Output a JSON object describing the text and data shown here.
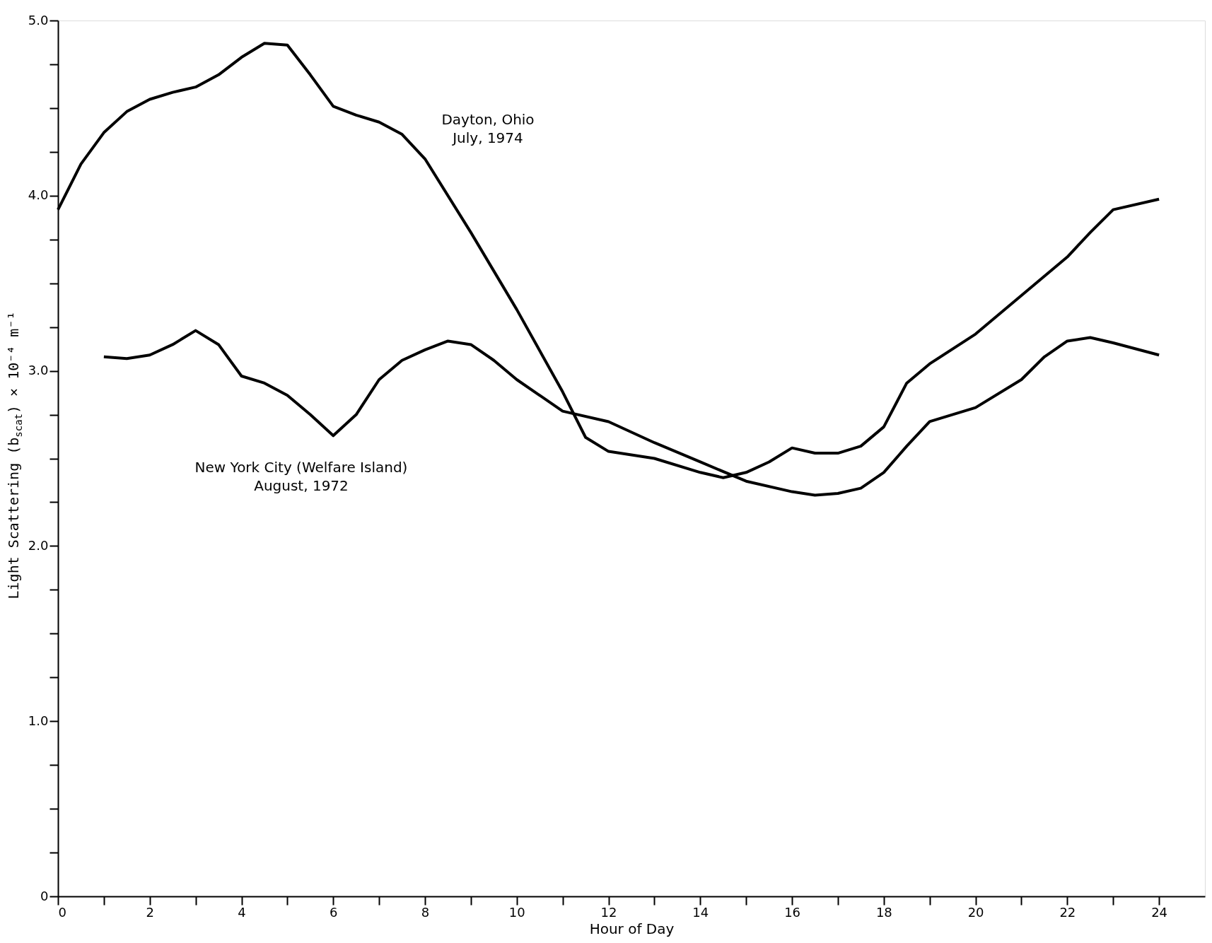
{
  "chart_data": {
    "type": "line",
    "xlabel": "Hour of Day",
    "ylabel": "Light Scattering (b$_{scat}$) × 10⁻⁴ m⁻¹",
    "xlim": [
      0,
      25
    ],
    "ylim": [
      0,
      5
    ],
    "xticks": [
      0,
      {
        "value": 1,
        "label": null
      },
      2,
      {
        "value": 3,
        "label": null
      },
      4,
      {
        "value": 5,
        "label": null
      },
      6,
      {
        "value": 7,
        "label": null
      },
      8,
      {
        "value": 9,
        "label": null
      },
      10,
      {
        "value": 11,
        "label": null
      },
      12,
      {
        "value": 13,
        "label": null
      },
      14,
      {
        "value": 15,
        "label": null
      },
      16,
      {
        "value": 17,
        "label": null
      },
      18,
      {
        "value": 19,
        "label": null
      },
      20,
      {
        "value": 21,
        "label": null
      },
      22,
      {
        "value": 23,
        "label": null
      },
      24
    ],
    "yticks": [
      0,
      {
        "value": 0.25,
        "label": null
      },
      {
        "value": 0.5,
        "label": null
      },
      {
        "value": 0.75,
        "label": null
      },
      {
        "value": 1,
        "label": "1.0"
      },
      {
        "value": 1.25,
        "label": null
      },
      {
        "value": 1.5,
        "label": null
      },
      {
        "value": 1.75,
        "label": null
      },
      {
        "value": 2,
        "label": "2.0"
      },
      {
        "value": 2.25,
        "label": null
      },
      {
        "value": 2.5,
        "label": null
      },
      {
        "value": 2.75,
        "label": null
      },
      {
        "value": 3,
        "label": "3.0"
      },
      {
        "value": 3.25,
        "label": null
      },
      {
        "value": 3.5,
        "label": null
      },
      {
        "value": 3.75,
        "label": null
      },
      {
        "value": 4,
        "label": "4.0"
      },
      {
        "value": 4.25,
        "label": null
      },
      {
        "value": 4.5,
        "label": null
      },
      {
        "value": 4.75,
        "label": null
      },
      {
        "value": 5,
        "label": "5.0"
      }
    ],
    "grid": false,
    "marker": "none",
    "line_style": "solid",
    "series": [
      {
        "color": "#000000",
        "x": [
          0,
          0.5,
          1,
          1.5,
          2,
          2.5,
          3,
          3.5,
          4,
          4.5,
          5,
          5.5,
          6,
          6.5,
          7,
          7.5,
          8,
          9,
          10,
          11,
          11.5,
          12,
          13,
          14,
          14.5,
          15,
          15.5,
          16,
          16.5,
          17,
          17.5,
          18,
          18.5,
          19,
          20,
          21,
          22,
          22.5,
          23,
          24
        ],
        "values": [
          3.92,
          4.18,
          4.36,
          4.48,
          4.55,
          4.59,
          4.62,
          4.69,
          4.79,
          4.87,
          4.86,
          4.69,
          4.51,
          4.46,
          4.42,
          4.35,
          4.21,
          3.79,
          3.35,
          2.88,
          2.62,
          2.54,
          2.5,
          2.42,
          2.39,
          2.42,
          2.48,
          2.56,
          2.53,
          2.53,
          2.57,
          2.68,
          2.93,
          3.04,
          3.21,
          3.43,
          3.65,
          3.79,
          3.92,
          3.98
        ]
      },
      {
        "color": "#000000",
        "x": [
          1,
          1.5,
          2,
          2.5,
          3,
          3.5,
          4,
          4.5,
          5,
          5.5,
          6,
          6.5,
          7,
          7.5,
          8,
          8.5,
          9,
          9.5,
          10,
          11,
          12,
          13,
          14,
          15,
          16,
          16.5,
          17,
          17.5,
          18,
          18.5,
          19,
          20,
          21,
          21.5,
          22,
          22.5,
          23,
          24
        ],
        "values": [
          3.08,
          3.07,
          3.09,
          3.15,
          3.23,
          3.15,
          2.97,
          2.93,
          2.86,
          2.75,
          2.63,
          2.75,
          2.95,
          3.06,
          3.12,
          3.17,
          3.15,
          3.06,
          2.95,
          2.77,
          2.71,
          2.59,
          2.48,
          2.37,
          2.31,
          2.29,
          2.3,
          2.33,
          2.42,
          2.57,
          2.71,
          2.79,
          2.95,
          3.08,
          3.17,
          3.19,
          3.16,
          3.09
        ]
      }
    ],
    "annotations": [
      "Dayton, Ohio\nJuly, 1974",
      "New York City (Welfare Island)\nAugust, 1972"
    ]
  }
}
